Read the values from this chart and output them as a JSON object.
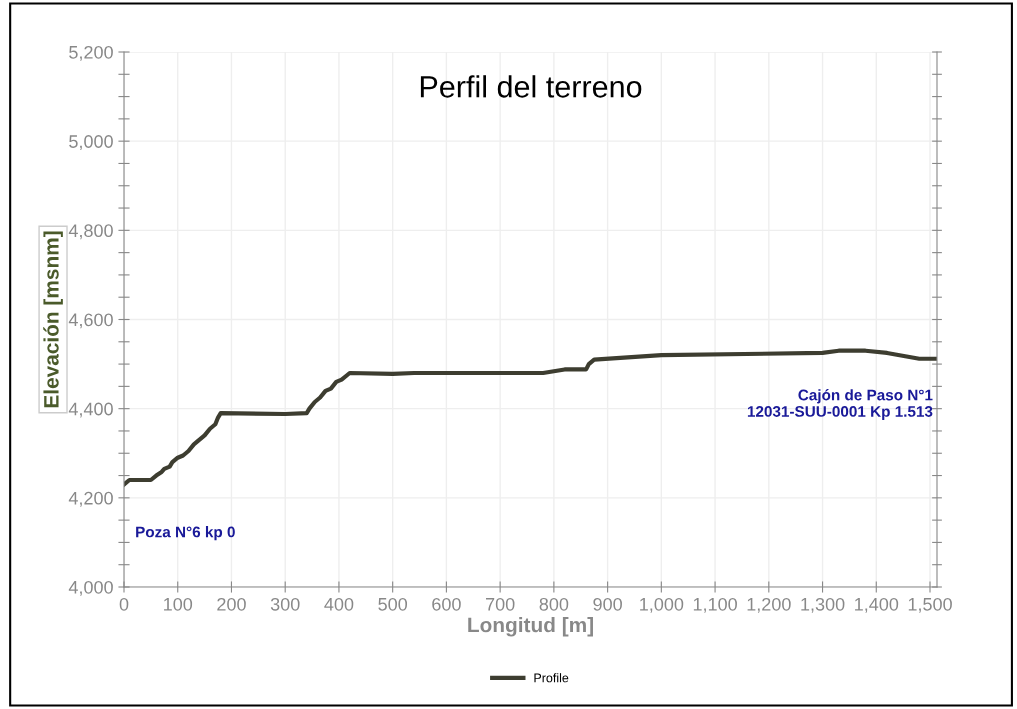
{
  "chart_data": {
    "type": "line",
    "title": "Perfil del terreno",
    "xlabel": "Longitud [m]",
    "ylabel": "Elevación [msnm]",
    "x": [
      0,
      10,
      50,
      60,
      70,
      75,
      85,
      90,
      100,
      110,
      120,
      130,
      140,
      150,
      160,
      170,
      175,
      180,
      300,
      340,
      345,
      355,
      365,
      375,
      385,
      395,
      405,
      415,
      420,
      500,
      540,
      780,
      820,
      860,
      865,
      875,
      1000,
      1300,
      1330,
      1380,
      1420,
      1480,
      1513
    ],
    "series": [
      {
        "name": "Profile",
        "color": "#3d3d30",
        "values": [
          4230,
          4240,
          4240,
          4250,
          4258,
          4265,
          4270,
          4280,
          4290,
          4295,
          4305,
          4320,
          4330,
          4340,
          4355,
          4365,
          4380,
          4390,
          4388,
          4390,
          4400,
          4415,
          4425,
          4440,
          4445,
          4460,
          4465,
          4475,
          4480,
          4478,
          4480,
          4480,
          4488,
          4488,
          4500,
          4510,
          4520,
          4525,
          4530,
          4530,
          4525,
          4512,
          4512
        ]
      }
    ],
    "xlim": [
      0,
      1513
    ],
    "ylim": [
      4000,
      5200
    ],
    "xticks": [
      0,
      {
        "value": 100,
        "label": "100"
      },
      {
        "value": 200,
        "label": "200"
      },
      {
        "value": 300,
        "label": "300"
      },
      {
        "value": 400,
        "label": "400"
      },
      {
        "value": 500,
        "label": "500"
      },
      {
        "value": 600,
        "label": "600"
      },
      {
        "value": 700,
        "label": "700"
      },
      {
        "value": 800,
        "label": "800"
      },
      {
        "value": 900,
        "label": "900"
      },
      {
        "value": 1000,
        "label": "1,000"
      },
      {
        "value": 1100,
        "label": "1,100"
      },
      {
        "value": 1200,
        "label": "1,200"
      },
      {
        "value": 1300,
        "label": "1,300"
      },
      {
        "value": 1400,
        "label": "1,400"
      },
      {
        "value": 1500,
        "label": "1,500"
      }
    ],
    "yticks": [
      {
        "value": 4000,
        "label": "4,000"
      },
      {
        "value": 4050,
        "label": null
      },
      {
        "value": 4100,
        "label": null
      },
      {
        "value": 4150,
        "label": null
      },
      {
        "value": 4200,
        "label": "4,200"
      },
      {
        "value": 4250,
        "label": null
      },
      {
        "value": 4300,
        "label": null
      },
      {
        "value": 4350,
        "label": null
      },
      {
        "value": 4400,
        "label": "4,400"
      },
      {
        "value": 4450,
        "label": null
      },
      {
        "value": 4500,
        "label": null
      },
      {
        "value": 4550,
        "label": null
      },
      {
        "value": 4600,
        "label": "4,600"
      },
      {
        "value": 4650,
        "label": null
      },
      {
        "value": 4700,
        "label": null
      },
      {
        "value": 4750,
        "label": null
      },
      {
        "value": 4800,
        "label": "4,800"
      },
      {
        "value": 4850,
        "label": null
      },
      {
        "value": 4900,
        "label": null
      },
      {
        "value": 4950,
        "label": null
      },
      {
        "value": 5000,
        "label": "5,000"
      },
      {
        "value": 5050,
        "label": null
      },
      {
        "value": 5100,
        "label": null
      },
      {
        "value": 5150,
        "label": null
      },
      {
        "value": 5200,
        "label": "5,200"
      }
    ],
    "annotations": [
      {
        "text": "Poza N°6 kp 0",
        "x": 0,
        "y": 4230
      },
      "Cajón de Paso N°1\n12031-SUU-0001 Kp 1.513"
    ],
    "grid": true,
    "legend": "bottom",
    "marker": "none",
    "line_style": "solid"
  }
}
